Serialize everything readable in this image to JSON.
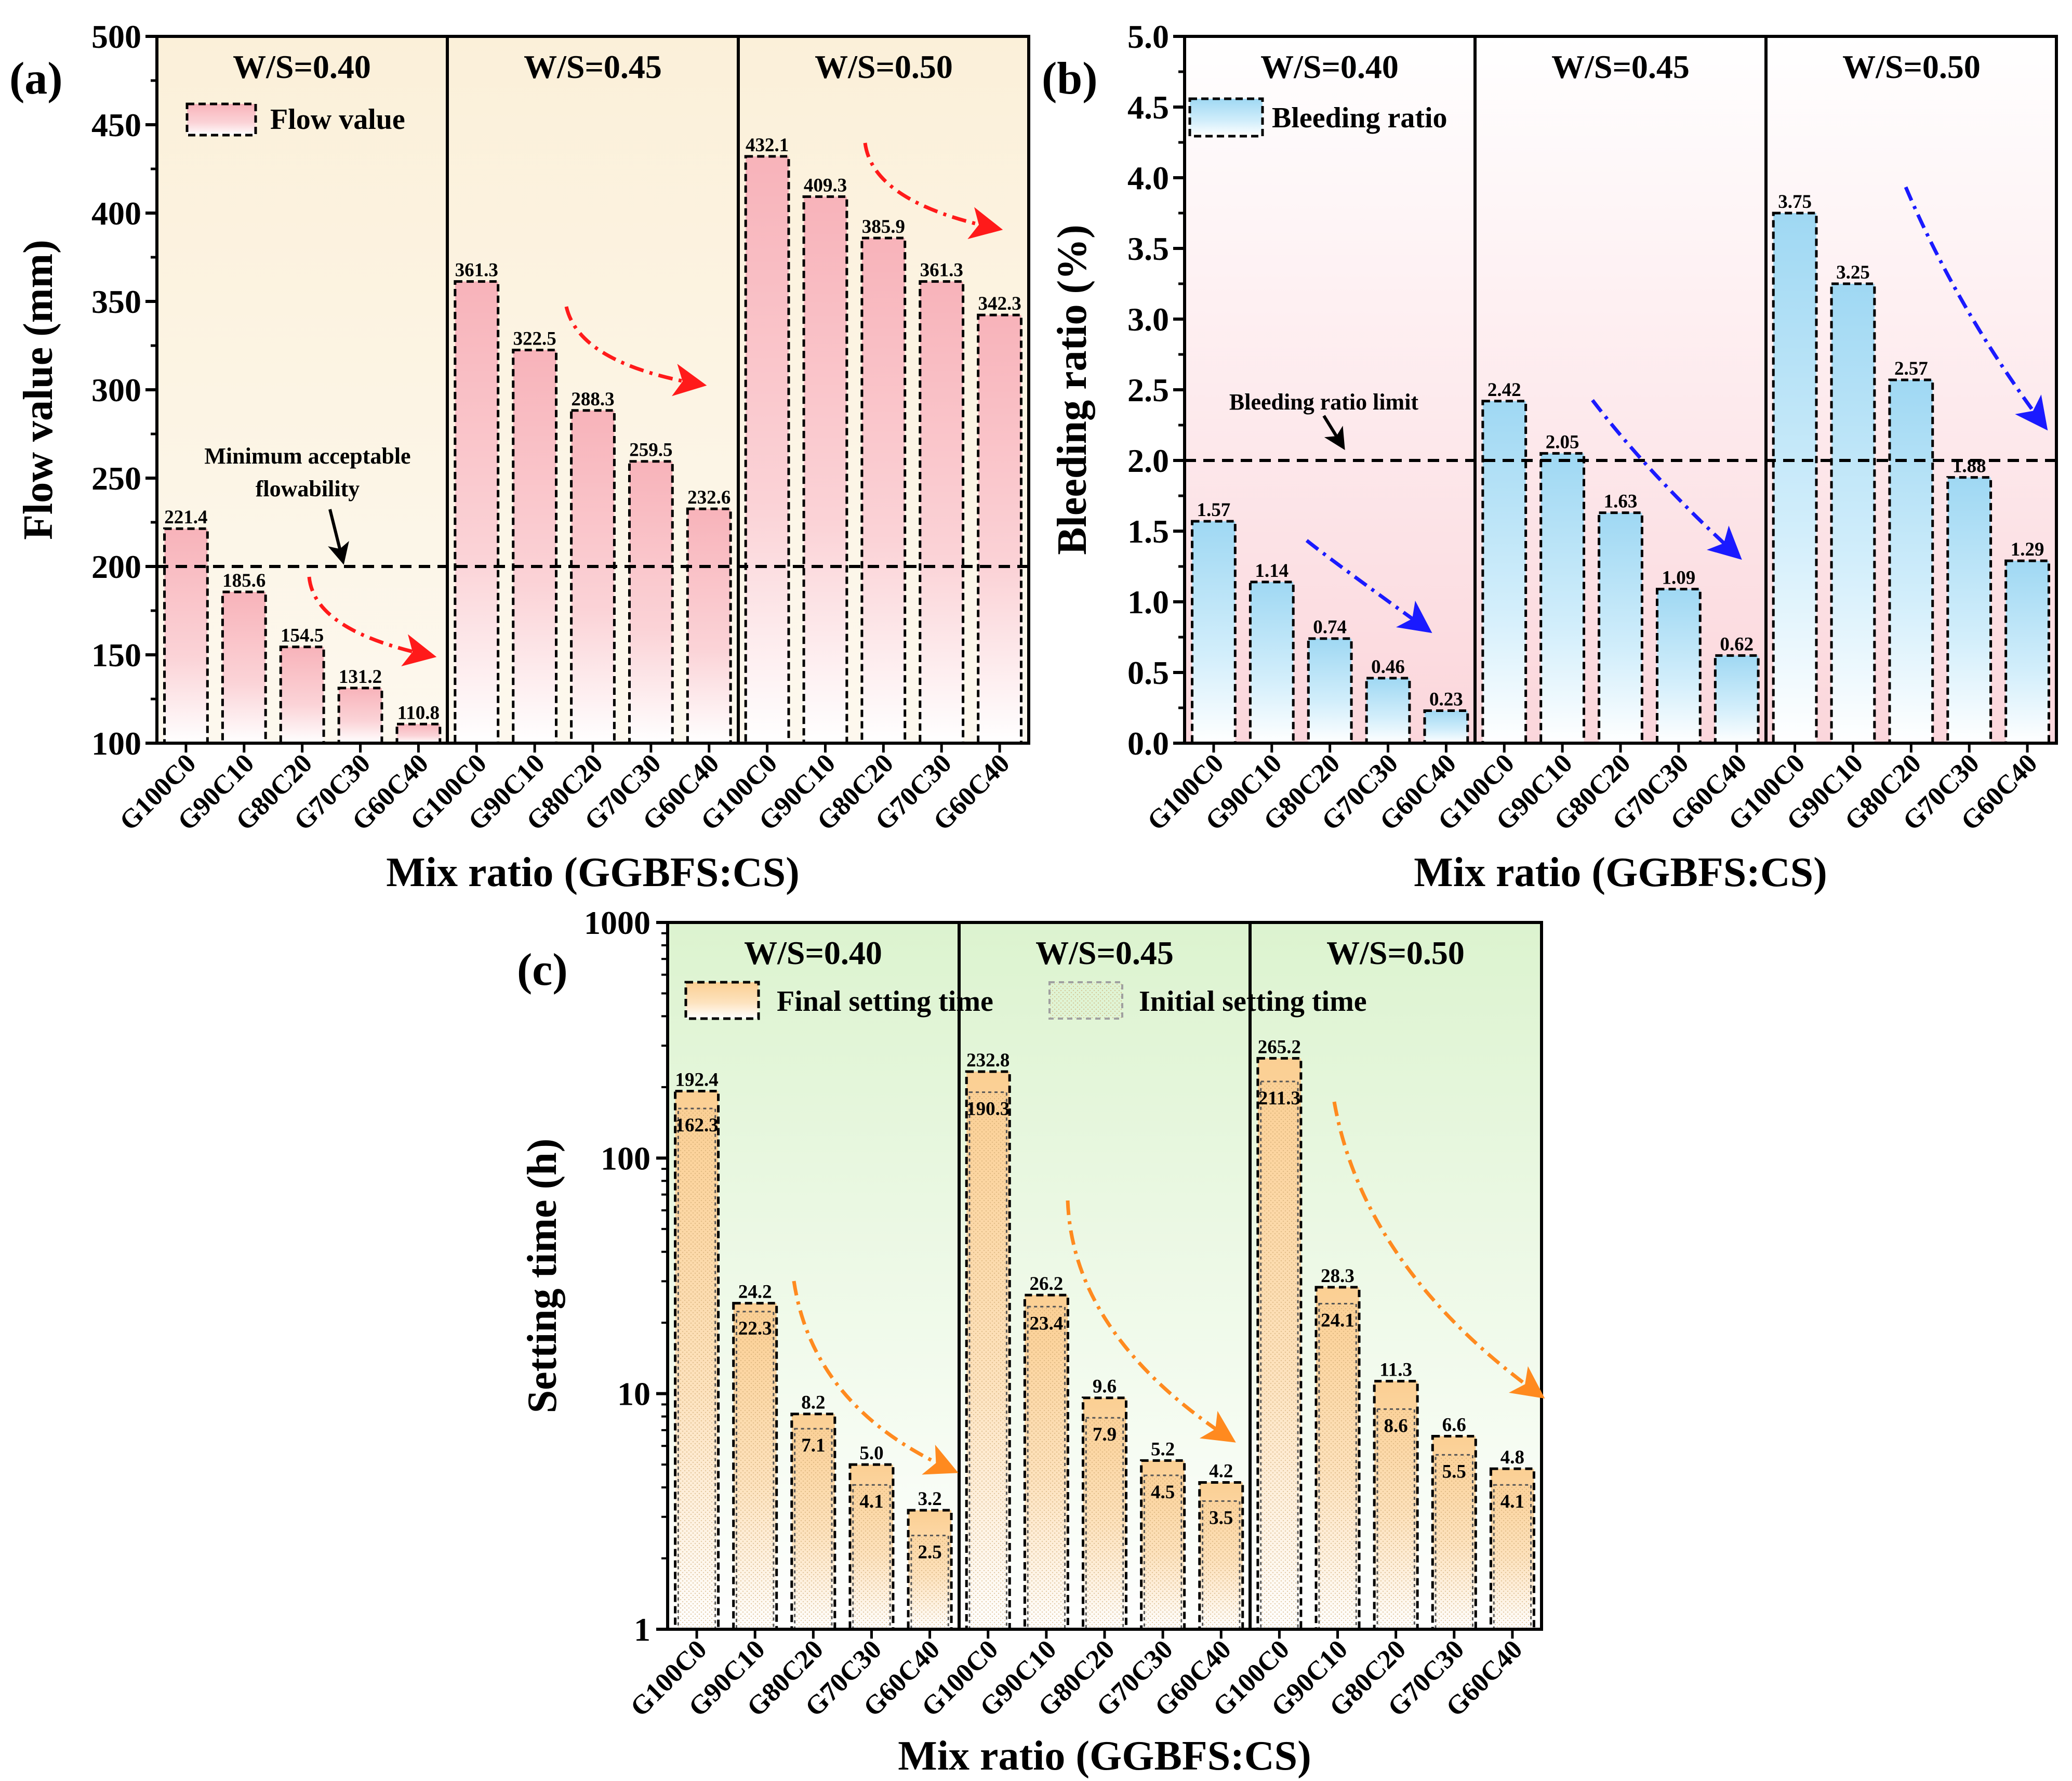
{
  "chart_data": [
    {
      "panel": "(a)",
      "type": "bar",
      "categories": [
        "G100C0",
        "G90C10",
        "G80C20",
        "G70C30",
        "G60C40"
      ],
      "groups": [
        {
          "label": "W/S=0.40",
          "values": [
            221.4,
            185.6,
            154.5,
            131.2,
            110.8
          ],
          "labels": [
            "221.4",
            "185.6",
            "154.5",
            "131.2",
            "110.8"
          ]
        },
        {
          "label": "W/S=0.45",
          "values": [
            361.3,
            322.5,
            288.3,
            259.5,
            232.6
          ],
          "labels": [
            "361.3",
            "322.5",
            "288.3",
            "259.5",
            "232.6"
          ]
        },
        {
          "label": "W/S=0.50",
          "values": [
            432.1,
            409.3,
            385.9,
            361.3,
            342.3
          ],
          "labels": [
            "432.1",
            "409.3",
            "385.9",
            "361.3",
            "342.3"
          ]
        }
      ],
      "ylim": [
        100,
        500
      ],
      "yticks": [
        100,
        150,
        200,
        250,
        300,
        350,
        400,
        450,
        500
      ],
      "ylabel": "Flow value (mm)",
      "xlabel": "Mix ratio (GGBFS:CS)",
      "legend": [
        "Flow value"
      ],
      "reference_line": {
        "value": 200,
        "label": [
          "Minimum acceptable",
          "flowability"
        ]
      },
      "colors": {
        "bar": "#f8b9bf",
        "background": "#fdf3e1",
        "arrow": "#ff1a1a"
      }
    },
    {
      "panel": "(b)",
      "type": "bar",
      "categories": [
        "G100C0",
        "G90C10",
        "G80C20",
        "G70C30",
        "G60C40"
      ],
      "groups": [
        {
          "label": "W/S=0.40",
          "values": [
            1.57,
            1.14,
            0.74,
            0.46,
            0.23
          ],
          "labels": [
            "1.57",
            "1.14",
            "0.74",
            "0.46",
            "0.23"
          ]
        },
        {
          "label": "W/S=0.45",
          "values": [
            2.42,
            2.05,
            1.63,
            1.09,
            0.62
          ],
          "labels": [
            "2.42",
            "2.05",
            "1.63",
            "1.09",
            "0.62"
          ]
        },
        {
          "label": "W/S=0.50",
          "values": [
            3.75,
            3.25,
            2.57,
            1.88,
            1.29
          ],
          "labels": [
            "3.75",
            "3.25",
            "2.57",
            "1.88",
            "1.29"
          ]
        }
      ],
      "ylim": [
        0,
        5
      ],
      "yticks": [
        0.0,
        0.5,
        1.0,
        1.5,
        2.0,
        2.5,
        3.0,
        3.5,
        4.0,
        4.5,
        5.0
      ],
      "ytick_labels": [
        "0.0",
        "0.5",
        "1.0",
        "1.5",
        "2.0",
        "2.5",
        "3.0",
        "3.5",
        "4.0",
        "4.5",
        "5.0"
      ],
      "ylabel": "Bleeding ratio (%)",
      "xlabel": "Mix ratio (GGBFS:CS)",
      "legend": [
        "Bleeding ratio"
      ],
      "reference_line": {
        "value": 2.0,
        "label": [
          "Bleeding ratio limit"
        ]
      },
      "colors": {
        "bar": "#a9dcf4",
        "background": "#fde8ea",
        "arrow": "#1a1aff"
      }
    },
    {
      "panel": "(c)",
      "type": "bar",
      "scale": "log",
      "categories": [
        "G100C0",
        "G90C10",
        "G80C20",
        "G70C30",
        "G60C40"
      ],
      "series": [
        {
          "name": "Final setting time",
          "groups": [
            {
              "label": "W/S=0.40",
              "values": [
                192.4,
                24.2,
                8.2,
                5.0,
                3.2
              ],
              "labels": [
                "192.4",
                "24.2",
                "8.2",
                "5.0",
                "3.2"
              ]
            },
            {
              "label": "W/S=0.45",
              "values": [
                232.8,
                26.2,
                9.6,
                5.2,
                4.2
              ],
              "labels": [
                "232.8",
                "26.2",
                "9.6",
                "5.2",
                "4.2"
              ]
            },
            {
              "label": "W/S=0.50",
              "values": [
                265.2,
                28.3,
                11.3,
                6.6,
                4.8
              ],
              "labels": [
                "265.2",
                "28.3",
                "11.3",
                "6.6",
                "4.8"
              ]
            }
          ]
        },
        {
          "name": "Initial setting time",
          "groups": [
            {
              "label": "W/S=0.40",
              "values": [
                162.3,
                22.3,
                7.1,
                4.1,
                2.5
              ],
              "labels": [
                "162.3",
                "22.3",
                "7.1",
                "4.1",
                "2.5"
              ]
            },
            {
              "label": "W/S=0.45",
              "values": [
                190.3,
                23.4,
                7.9,
                4.5,
                3.5
              ],
              "labels": [
                "190.3",
                "23.4",
                "7.9",
                "4.5",
                "3.5"
              ]
            },
            {
              "label": "W/S=0.50",
              "values": [
                211.3,
                24.1,
                8.6,
                5.5,
                4.1
              ],
              "labels": [
                "211.3",
                "24.1",
                "8.6",
                "5.5",
                "4.1"
              ]
            }
          ]
        }
      ],
      "ylim": [
        1,
        1000
      ],
      "yticks": [
        1,
        10,
        100,
        1000
      ],
      "ylabel": "Setting time (h)",
      "xlabel": "Mix ratio (GGBFS:CS)",
      "legend": [
        "Final setting time",
        "Initial setting time"
      ],
      "colors": {
        "bar": "#fcd39a",
        "background": "#e6f6dc",
        "arrow": "#ff8a1f"
      }
    }
  ]
}
